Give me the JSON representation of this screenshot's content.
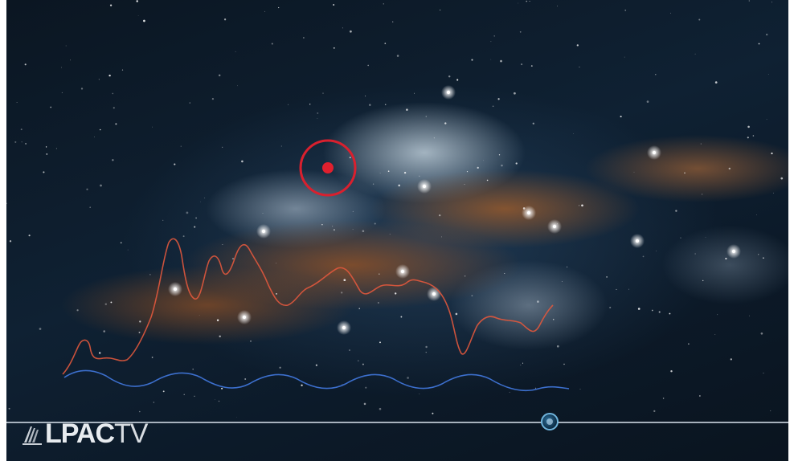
{
  "video": {
    "channel_logo": {
      "brand": "LPAC",
      "suffix": "TV"
    },
    "colors": {
      "target_ring": "#d9202e",
      "red_waveform": "#e0583d",
      "blue_waveform": "#3f74d6",
      "timeline": "#dde6ee",
      "progress_knob": "#2d6f9a"
    },
    "playback_progress": 0.695,
    "icons": [
      "target-reticle-icon",
      "progress-knob-icon",
      "lpac-logo-mark-icon"
    ]
  }
}
